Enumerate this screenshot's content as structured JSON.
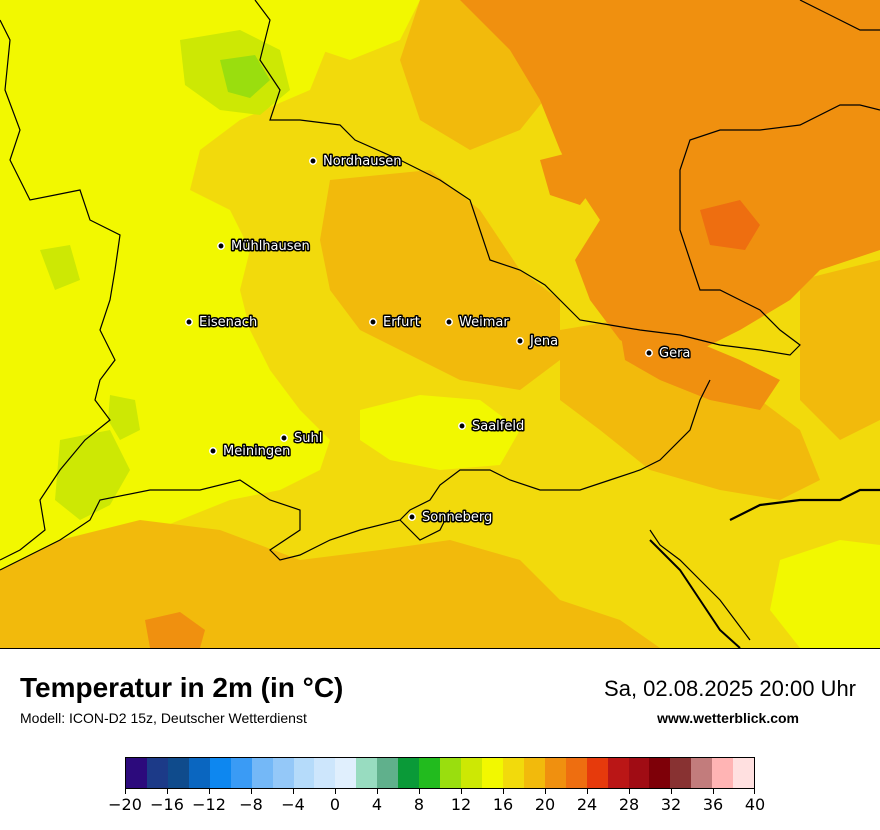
{
  "map": {
    "cities": [
      {
        "name": "Nordhausen"
      },
      {
        "name": "Mühlhausen"
      },
      {
        "name": "Eisenach"
      },
      {
        "name": "Erfurt"
      },
      {
        "name": "Weimar"
      },
      {
        "name": "Jena"
      },
      {
        "name": "Gera"
      },
      {
        "name": "Saalfeld"
      },
      {
        "name": "Suhl"
      },
      {
        "name": "Meiningen"
      },
      {
        "name": "Sonneberg"
      }
    ]
  },
  "header": {
    "title": "Temperatur in 2m (in °C)",
    "model": "Modell: ICON-D2 15z, Deutscher Wetterdienst",
    "datetime": "Sa, 02.08.2025 20:00 Uhr",
    "website": "www.wetterblick.com"
  },
  "legend": {
    "colors": [
      "#2c0a7c",
      "#1c3a88",
      "#0f4b8c",
      "#0a66c0",
      "#0d87f0",
      "#3a9bf5",
      "#74b8f7",
      "#94c8f8",
      "#b5dbfa",
      "#cde6fc",
      "#e0effd",
      "#98dcc0",
      "#60b08c",
      "#0a9a38",
      "#22bb1e",
      "#9ade0e",
      "#cde804",
      "#f2f800",
      "#f2da0c",
      "#f2ba0c",
      "#f0900f",
      "#ee6e10",
      "#e63a0c",
      "#ba1616",
      "#a00c14",
      "#7e0008",
      "#883232",
      "#c27c7c",
      "#ffb4b4",
      "#ffe0e0"
    ],
    "tick_labels": [
      "−20",
      "−16",
      "−12",
      "−8",
      "−4",
      "0",
      "4",
      "8",
      "12",
      "16",
      "20",
      "24",
      "28",
      "32",
      "36",
      "40"
    ],
    "tick_values": [
      -20,
      -16,
      -12,
      -8,
      -4,
      0,
      4,
      8,
      12,
      16,
      20,
      24,
      28,
      32,
      36,
      40
    ],
    "min": -20,
    "max": 40
  }
}
